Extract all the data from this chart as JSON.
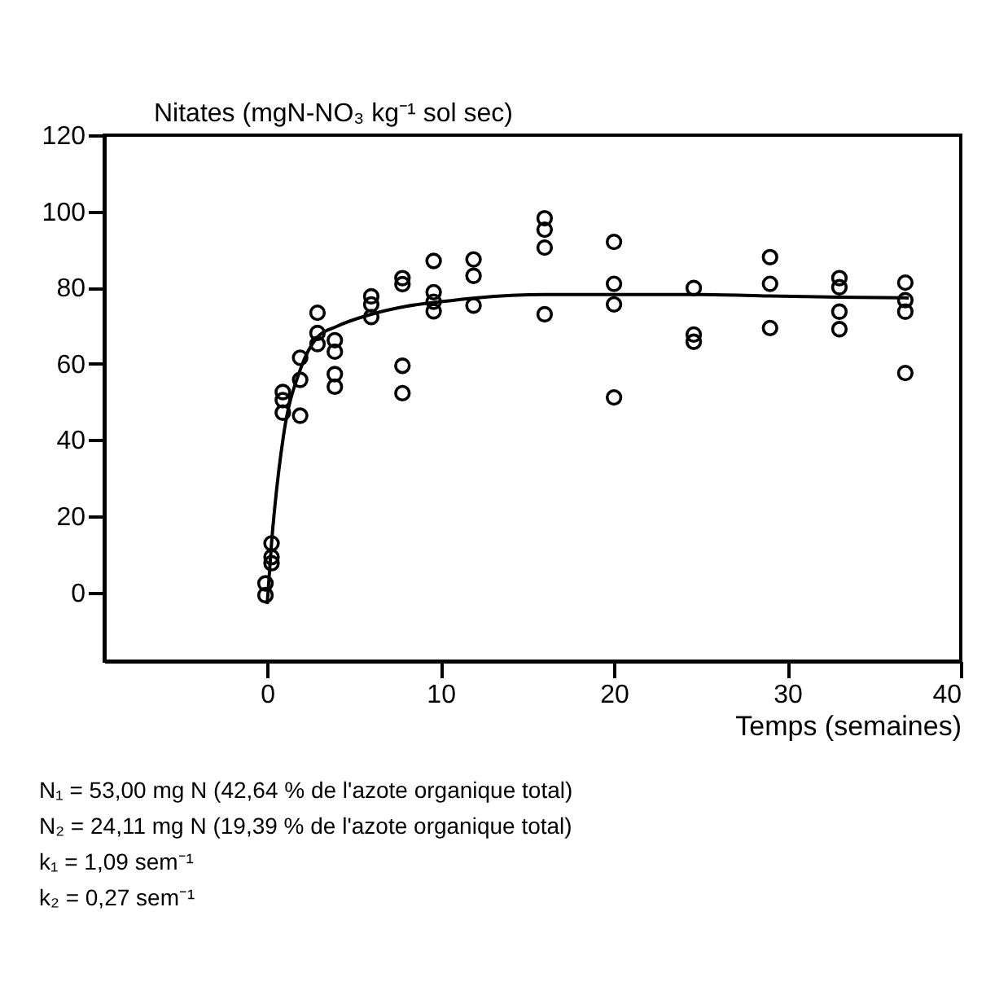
{
  "chart_data": {
    "type": "scatter",
    "ylabel": "Nitates (mgN-NO₃ kg⁻¹ sol sec)",
    "xlabel": "Temps (semaines)",
    "xlim": [
      -9.4,
      40
    ],
    "xticks": [
      0,
      10,
      20,
      30,
      40
    ],
    "ylim": [
      -18,
      120
    ],
    "yticks": [
      0,
      20,
      40,
      60,
      80,
      100,
      120
    ],
    "grid": false,
    "series": [
      {
        "marker": "circle",
        "color": "#000000",
        "x": [
          -0.1,
          -0.1,
          0.25,
          0.25,
          0.25,
          0.9,
          0.9,
          0.9,
          1.9,
          1.9,
          1.9,
          2.9,
          2.9,
          2.9,
          3.9,
          3.9,
          3.9,
          3.9,
          6,
          6,
          6,
          7.8,
          7.8,
          7.8,
          7.8,
          9.6,
          9.6,
          9.6,
          9.6,
          11.9,
          11.9,
          11.9,
          16,
          16,
          16,
          16,
          20,
          20,
          20,
          20,
          24.6,
          24.6,
          24.6,
          29,
          29,
          29,
          33,
          33,
          33,
          33,
          36.8,
          36.8,
          36.8,
          36.8
        ],
        "values": [
          2.4,
          -0.7,
          12.9,
          9.3,
          7.7,
          52.6,
          50.5,
          47.2,
          61.6,
          55.8,
          46.4,
          73.4,
          68.1,
          65.2,
          66.2,
          63.2,
          57.3,
          54,
          77.7,
          75.6,
          72.3,
          82.5,
          80.9,
          59.5,
          52.3,
          87,
          78.8,
          76.3,
          73.8,
          87.4,
          83.1,
          75.3,
          98.2,
          95.2,
          90.5,
          73,
          92,
          81,
          75.6,
          51.2,
          79.9,
          67.7,
          65.8,
          88,
          81,
          69.4,
          82.5,
          80.1,
          73.7,
          69.1,
          81.3,
          76.7,
          73.7,
          57.6
        ]
      },
      {
        "type": "line",
        "color": "#000000",
        "line_style": "solid",
        "x": [
          0,
          0.25,
          0.44,
          0.94,
          1.9,
          2.9,
          4,
          6,
          8,
          10,
          12,
          16,
          20,
          25,
          29,
          33,
          37
        ],
        "values": [
          -3,
          13,
          22.5,
          41.2,
          58.4,
          67,
          69.8,
          73,
          75.1,
          76.3,
          77.3,
          78.2,
          78.2,
          78.2,
          77.8,
          77.5,
          77.3
        ]
      }
    ],
    "annotations": [
      "N₁ = 53,00 mg N (42,64 % de l'azote organique total)",
      "N₂ = 24,11 mg N (19,39 % de l'azote organique total)",
      "k₁ = 1,09 sem⁻¹",
      "k₂ = 0,27 sem⁻¹"
    ]
  }
}
